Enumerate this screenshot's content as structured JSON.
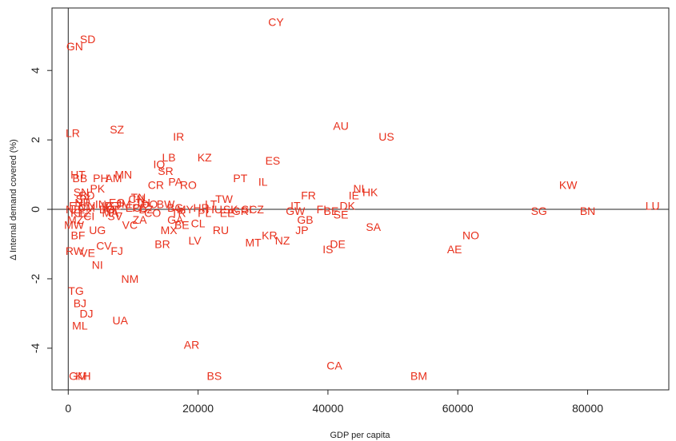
{
  "chart_data": {
    "type": "scatter",
    "title": "",
    "xlabel": "GDP per capita",
    "ylabel": "Δ Internal demand covered (%)",
    "xlim": [
      -2500,
      92500
    ],
    "ylim": [
      -5.2,
      5.8
    ],
    "xticks": [
      0,
      20000,
      40000,
      60000,
      80000
    ],
    "yticks": [
      -4,
      -2,
      0,
      2,
      4
    ],
    "ref_lines": {
      "x": 0,
      "y": 0
    },
    "grid": false,
    "marker_color": "#e8301c",
    "points": [
      {
        "label": "CY",
        "x": 32000,
        "y": 5.4
      },
      {
        "label": "SD",
        "x": 3000,
        "y": 4.9
      },
      {
        "label": "GN",
        "x": 1000,
        "y": 4.7
      },
      {
        "label": "AU",
        "x": 42000,
        "y": 2.4
      },
      {
        "label": "US",
        "x": 49000,
        "y": 2.1
      },
      {
        "label": "LR",
        "x": 700,
        "y": 2.2
      },
      {
        "label": "SZ",
        "x": 7500,
        "y": 2.3
      },
      {
        "label": "IR",
        "x": 17000,
        "y": 2.1
      },
      {
        "label": "ES",
        "x": 31500,
        "y": 1.4
      },
      {
        "label": "KZ",
        "x": 21000,
        "y": 1.5
      },
      {
        "label": "LB",
        "x": 15500,
        "y": 1.5
      },
      {
        "label": "IQ",
        "x": 14000,
        "y": 1.3
      },
      {
        "label": "SR",
        "x": 15000,
        "y": 1.1
      },
      {
        "label": "PT",
        "x": 26500,
        "y": 0.9
      },
      {
        "label": "IL",
        "x": 30000,
        "y": 0.8
      },
      {
        "label": "PA",
        "x": 16500,
        "y": 0.8
      },
      {
        "label": "RO",
        "x": 18500,
        "y": 0.7
      },
      {
        "label": "CR",
        "x": 13500,
        "y": 0.7
      },
      {
        "label": "MN",
        "x": 8500,
        "y": 1.0
      },
      {
        "label": "AM",
        "x": 7000,
        "y": 0.9
      },
      {
        "label": "PH",
        "x": 5000,
        "y": 0.9
      },
      {
        "label": "HT",
        "x": 1500,
        "y": 1.0
      },
      {
        "label": "BB",
        "x": 1800,
        "y": 0.9
      },
      {
        "label": "PK",
        "x": 4500,
        "y": 0.6
      },
      {
        "label": "SN",
        "x": 2000,
        "y": 0.5
      },
      {
        "label": "TW",
        "x": 24000,
        "y": 0.3
      },
      {
        "label": "FR",
        "x": 37000,
        "y": 0.4
      },
      {
        "label": "NL",
        "x": 45000,
        "y": 0.6
      },
      {
        "label": "HK",
        "x": 46500,
        "y": 0.5
      },
      {
        "label": "IE",
        "x": 44000,
        "y": 0.4
      },
      {
        "label": "KW",
        "x": 77000,
        "y": 0.7
      },
      {
        "label": "IT",
        "x": 35000,
        "y": 0.1
      },
      {
        "label": "DK",
        "x": 43000,
        "y": 0.1
      },
      {
        "label": "GW",
        "x": 35000,
        "y": -0.05
      },
      {
        "label": "FI",
        "x": 39000,
        "y": 0.0
      },
      {
        "label": "BE",
        "x": 40500,
        "y": -0.05
      },
      {
        "label": "SE",
        "x": 42000,
        "y": -0.15
      },
      {
        "label": "SG",
        "x": 72500,
        "y": -0.05
      },
      {
        "label": "BN",
        "x": 80000,
        "y": -0.05
      },
      {
        "label": "LU",
        "x": 90000,
        "y": 0.1
      },
      {
        "label": "GB",
        "x": 36500,
        "y": -0.3
      },
      {
        "label": "SA",
        "x": 47000,
        "y": -0.5
      },
      {
        "label": "NO",
        "x": 62000,
        "y": -0.75
      },
      {
        "label": "AE",
        "x": 59500,
        "y": -1.15
      },
      {
        "label": "JP",
        "x": 36000,
        "y": -0.6
      },
      {
        "label": "DE",
        "x": 41500,
        "y": -1.0
      },
      {
        "label": "IS",
        "x": 40000,
        "y": -1.15
      },
      {
        "label": "KR",
        "x": 31000,
        "y": -0.75
      },
      {
        "label": "NZ",
        "x": 33000,
        "y": -0.9
      },
      {
        "label": "MT",
        "x": 28500,
        "y": -0.95
      },
      {
        "label": "LV",
        "x": 19500,
        "y": -0.9
      },
      {
        "label": "RU",
        "x": 23500,
        "y": -0.6
      },
      {
        "label": "BR",
        "x": 14500,
        "y": -1.0
      },
      {
        "label": "MX",
        "x": 15500,
        "y": -0.6
      },
      {
        "label": "CL",
        "x": 20000,
        "y": -0.4
      },
      {
        "label": "ZA",
        "x": 11000,
        "y": -0.3
      },
      {
        "label": "TR",
        "x": 17000,
        "y": -0.1
      },
      {
        "label": "CZ",
        "x": 29000,
        "y": 0.0
      },
      {
        "label": "PL",
        "x": 21000,
        "y": -0.1
      },
      {
        "label": "GE",
        "x": 7000,
        "y": 0.0
      },
      {
        "label": "FJ",
        "x": 7500,
        "y": -1.2
      },
      {
        "label": "CV",
        "x": 5500,
        "y": -1.05
      },
      {
        "label": "VE",
        "x": 3000,
        "y": -1.25
      },
      {
        "label": "RW",
        "x": 1000,
        "y": -1.2
      },
      {
        "label": "NI",
        "x": 4500,
        "y": -1.6
      },
      {
        "label": "NM",
        "x": 9500,
        "y": -2.0
      },
      {
        "label": "BF",
        "x": 1500,
        "y": -0.75
      },
      {
        "label": "UG",
        "x": 4500,
        "y": -0.6
      },
      {
        "label": "TG",
        "x": 1200,
        "y": -2.35
      },
      {
        "label": "BJ",
        "x": 1800,
        "y": -2.7
      },
      {
        "label": "DJ",
        "x": 2800,
        "y": -3.0
      },
      {
        "label": "ML",
        "x": 1800,
        "y": -3.35
      },
      {
        "label": "UA",
        "x": 8000,
        "y": -3.2
      },
      {
        "label": "AR",
        "x": 19000,
        "y": -3.9
      },
      {
        "label": "CA",
        "x": 41000,
        "y": -4.5
      },
      {
        "label": "BM",
        "x": 54000,
        "y": -4.8
      },
      {
        "label": "BS",
        "x": 22500,
        "y": -4.8
      },
      {
        "label": "GM",
        "x": 1500,
        "y": -4.8
      },
      {
        "label": "KH",
        "x": 2300,
        "y": -4.8
      },
      {
        "label": "SY",
        "x": 2300,
        "y": 0.3
      },
      {
        "label": "VN",
        "x": 3000,
        "y": 0.1
      },
      {
        "label": "KE",
        "x": 1500,
        "y": -0.1
      },
      {
        "label": "NE",
        "x": 800,
        "y": 0.0
      },
      {
        "label": "ET",
        "x": 1200,
        "y": 0.1
      },
      {
        "label": "TZ",
        "x": 2500,
        "y": -0.1
      },
      {
        "label": "MZ",
        "x": 1100,
        "y": -0.3
      },
      {
        "label": "MW",
        "x": 900,
        "y": -0.45
      },
      {
        "label": "CM",
        "x": 2800,
        "y": 0.05
      },
      {
        "label": "CI",
        "x": 3200,
        "y": -0.2
      },
      {
        "label": "BD",
        "x": 2900,
        "y": 0.4
      },
      {
        "label": "NP",
        "x": 2200,
        "y": 0.2
      },
      {
        "label": "IN",
        "x": 5000,
        "y": 0.15
      },
      {
        "label": "ID",
        "x": 6000,
        "y": 0.1
      },
      {
        "label": "EG",
        "x": 7500,
        "y": 0.2
      },
      {
        "label": "MA",
        "x": 6500,
        "y": -0.1
      },
      {
        "label": "BO",
        "x": 6000,
        "y": 0.0
      },
      {
        "label": "GT",
        "x": 7000,
        "y": 0.1
      },
      {
        "label": "SV",
        "x": 7200,
        "y": -0.2
      },
      {
        "label": "CN",
        "x": 10500,
        "y": 0.3
      },
      {
        "label": "TH",
        "x": 11500,
        "y": 0.2
      },
      {
        "label": "DZ",
        "x": 12000,
        "y": 0.0
      },
      {
        "label": "CO",
        "x": 13000,
        "y": -0.1
      },
      {
        "label": "PE",
        "x": 11000,
        "y": 0.05
      },
      {
        "label": "DO",
        "x": 12500,
        "y": 0.15
      },
      {
        "label": "EC",
        "x": 10000,
        "y": 0.05
      },
      {
        "label": "JM",
        "x": 8500,
        "y": 0.15
      },
      {
        "label": "TN",
        "x": 10800,
        "y": 0.35
      },
      {
        "label": "BW",
        "x": 15000,
        "y": 0.15
      },
      {
        "label": "BG",
        "x": 16500,
        "y": 0.05
      },
      {
        "label": "MY",
        "x": 18000,
        "y": 0.0
      },
      {
        "label": "HR",
        "x": 20500,
        "y": 0.05
      },
      {
        "label": "HU",
        "x": 22500,
        "y": 0.0
      },
      {
        "label": "SK",
        "x": 25000,
        "y": 0.0
      },
      {
        "label": "SI",
        "x": 27500,
        "y": 0.0
      },
      {
        "label": "EE",
        "x": 24500,
        "y": -0.1
      },
      {
        "label": "LT",
        "x": 22000,
        "y": 0.15
      },
      {
        "label": "VC",
        "x": 9500,
        "y": -0.45
      },
      {
        "label": "GA",
        "x": 16500,
        "y": -0.3
      },
      {
        "label": "BE",
        "x": 17500,
        "y": -0.45
      },
      {
        "label": "GR",
        "x": 26500,
        "y": -0.05
      }
    ]
  }
}
